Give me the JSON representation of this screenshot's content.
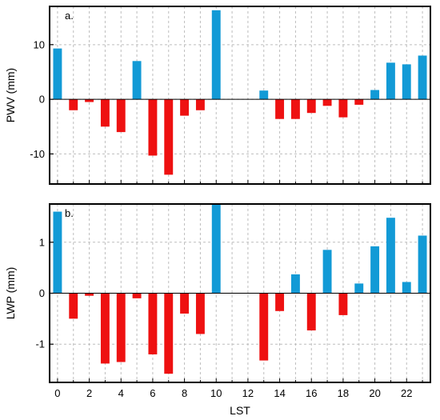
{
  "chart_data": [
    {
      "type": "bar",
      "panel_label": "a.",
      "xlabel": "",
      "ylabel": "PWV (mm)",
      "x": [
        0,
        1,
        2,
        3,
        4,
        5,
        6,
        7,
        8,
        9,
        10,
        11,
        12,
        13,
        14,
        15,
        16,
        17,
        18,
        19,
        20,
        21,
        22,
        23
      ],
      "values": [
        9.3,
        -2.0,
        -0.5,
        -5.0,
        -6.0,
        7.0,
        -10.3,
        -13.8,
        -3.0,
        -2.0,
        16.3,
        0,
        0,
        1.6,
        -3.6,
        -3.6,
        -2.5,
        -1.2,
        -3.3,
        -1.0,
        1.7,
        6.7,
        6.4,
        8.0
      ],
      "ylim": [
        -15.5,
        17
      ],
      "yticks": [
        -10,
        0,
        10
      ],
      "ytick_labels": [
        "-10",
        "0",
        "10"
      ],
      "xticks": [
        0,
        2,
        4,
        6,
        8,
        10,
        12,
        14,
        16,
        18,
        20,
        22
      ],
      "xtick_labels": [],
      "grid": true,
      "colors": {
        "positive": "#129ad6",
        "negative": "#ee1111"
      }
    },
    {
      "type": "bar",
      "panel_label": "b.",
      "xlabel": "LST",
      "ylabel": "LWP (mm)",
      "x": [
        0,
        1,
        2,
        3,
        4,
        5,
        6,
        7,
        8,
        9,
        10,
        11,
        12,
        13,
        14,
        15,
        16,
        17,
        18,
        19,
        20,
        21,
        22,
        23
      ],
      "values": [
        1.6,
        -0.5,
        -0.05,
        -1.38,
        -1.35,
        -0.1,
        -1.2,
        -1.58,
        -0.4,
        -0.8,
        1.75,
        0,
        0,
        -1.32,
        -0.35,
        0.37,
        -0.73,
        0.85,
        -0.43,
        0.19,
        0.92,
        1.48,
        0.22,
        1.13
      ],
      "ylim": [
        -1.75,
        1.75
      ],
      "yticks": [
        -1,
        0,
        1
      ],
      "ytick_labels": [
        "-1",
        "0",
        "1"
      ],
      "xticks": [
        0,
        2,
        4,
        6,
        8,
        10,
        12,
        14,
        16,
        18,
        20,
        22
      ],
      "xtick_labels": [
        "0",
        "2",
        "4",
        "6",
        "8",
        "10",
        "12",
        "14",
        "16",
        "18",
        "20",
        "22"
      ],
      "grid": true,
      "colors": {
        "positive": "#129ad6",
        "negative": "#ee1111"
      }
    }
  ]
}
